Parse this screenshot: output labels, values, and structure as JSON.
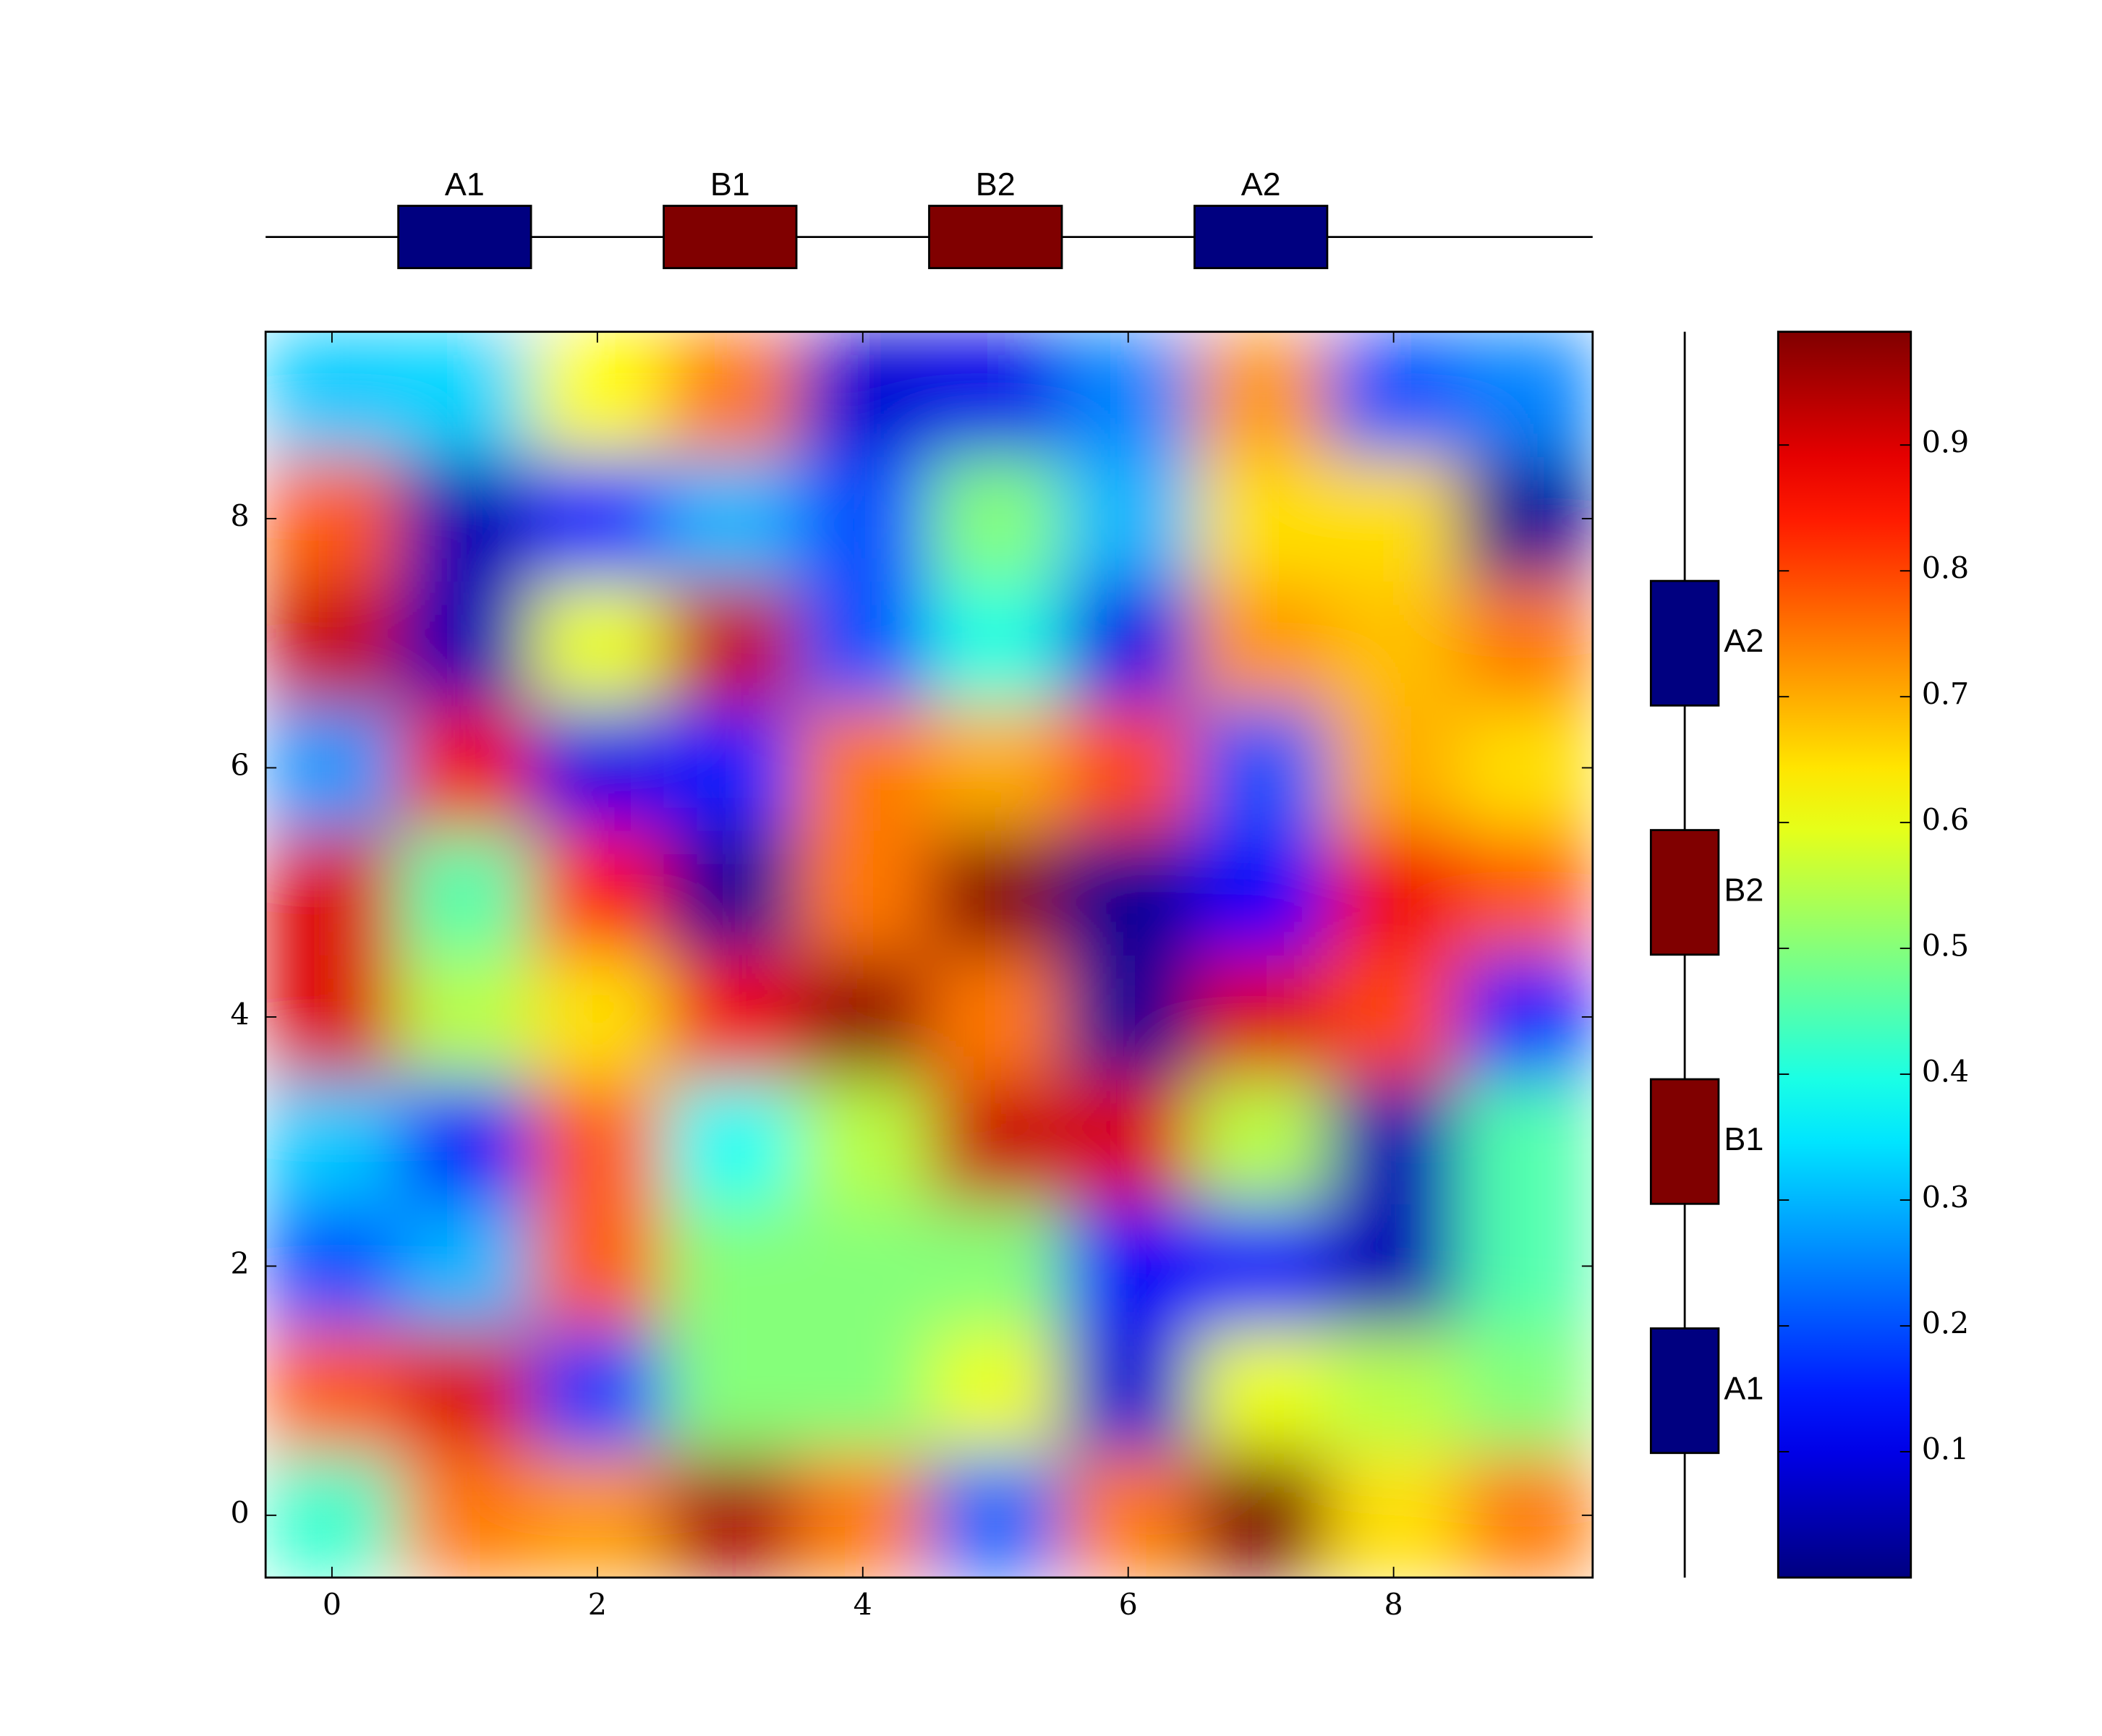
{
  "chart_data": {
    "type": "heatmap",
    "colormap": "jet",
    "xlim": [
      -0.5,
      9.5
    ],
    "ylim": [
      -0.5,
      9.5
    ],
    "xticks": [
      0,
      2,
      4,
      6,
      8
    ],
    "yticks": [
      0,
      2,
      4,
      6,
      8
    ],
    "clim": [
      0,
      0.99
    ],
    "cticks": [
      0.1,
      0.2,
      0.3,
      0.4,
      0.5,
      0.6,
      0.7,
      0.8,
      0.9
    ],
    "z": [
      [
        0.42,
        0.75,
        0.72,
        0.95,
        0.75,
        0.22,
        0.75,
        0.99,
        0.65,
        0.75
      ],
      [
        0.78,
        0.9,
        0.18,
        0.5,
        0.5,
        0.6,
        0.08,
        0.6,
        0.55,
        0.5
      ],
      [
        0.2,
        0.3,
        0.78,
        0.5,
        0.5,
        0.5,
        0.12,
        0.12,
        0.05,
        0.45
      ],
      [
        0.32,
        0.12,
        0.78,
        0.38,
        0.55,
        0.92,
        0.9,
        0.55,
        0.05,
        0.45
      ],
      [
        0.9,
        0.55,
        0.65,
        0.88,
        0.97,
        0.75,
        0.02,
        0.9,
        0.8,
        0.15
      ],
      [
        0.9,
        0.45,
        0.85,
        0.02,
        0.75,
        0.98,
        0.02,
        0.12,
        0.88,
        0.78
      ],
      [
        0.27,
        0.88,
        0.1,
        0.15,
        0.75,
        0.7,
        0.8,
        0.2,
        0.7,
        0.65
      ],
      [
        0.92,
        0.05,
        0.6,
        0.92,
        0.2,
        0.4,
        0.1,
        0.72,
        0.68,
        0.75
      ],
      [
        0.78,
        0.05,
        0.15,
        0.3,
        0.2,
        0.5,
        0.3,
        0.65,
        0.65,
        0.02
      ],
      [
        0.32,
        0.33,
        0.62,
        0.75,
        0.08,
        0.1,
        0.25,
        0.72,
        0.2,
        0.25
      ]
    ],
    "segments": [
      {
        "label": "A1",
        "start": 0.5,
        "end": 1.5,
        "color": "#000080"
      },
      {
        "label": "B1",
        "start": 2.5,
        "end": 3.5,
        "color": "#800000"
      },
      {
        "label": "B2",
        "start": 4.5,
        "end": 5.5,
        "color": "#800000"
      },
      {
        "label": "A2",
        "start": 6.5,
        "end": 7.5,
        "color": "#000080"
      }
    ]
  }
}
